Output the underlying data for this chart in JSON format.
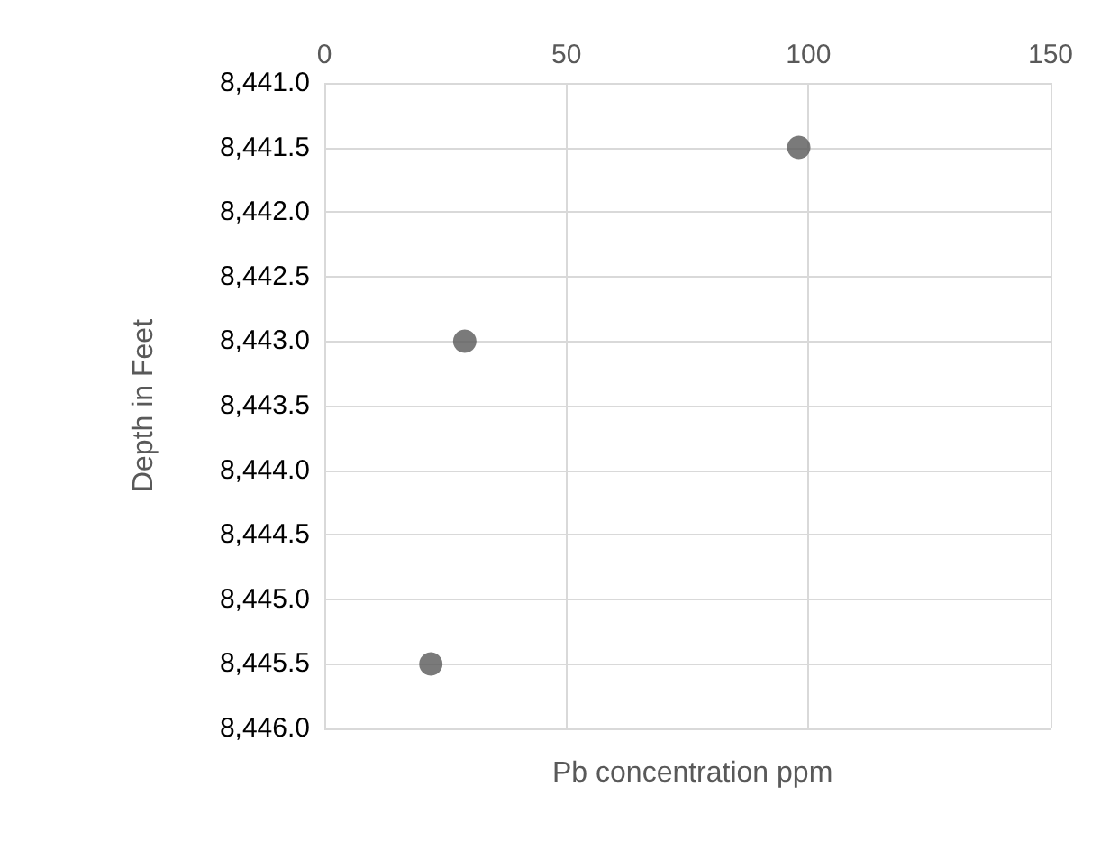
{
  "chart_data": {
    "type": "scatter",
    "xlabel": "Pb concentration ppm",
    "ylabel": "Depth in Feet",
    "x": [
      98,
      29,
      22
    ],
    "values": [
      8441.5,
      8443,
      8445.5
    ],
    "color": "#595959",
    "marker": "circle",
    "xlim": [
      0,
      150
    ],
    "xticks": [
      0,
      50,
      100,
      150
    ],
    "ylim": [
      8446,
      8441
    ],
    "yticks": [
      {
        "value": 8441,
        "label": "8,441.0"
      },
      {
        "value": 8441.5,
        "label": "8,441.5"
      },
      {
        "value": 8442,
        "label": "8,442.0"
      },
      {
        "value": 8442.5,
        "label": "8,442.5"
      },
      {
        "value": 8443,
        "label": "8,443.0"
      },
      {
        "value": 8443.5,
        "label": "8,443.5"
      },
      {
        "value": 8444,
        "label": "8,444.0"
      },
      {
        "value": 8444.5,
        "label": "8,444.5"
      },
      {
        "value": 8445,
        "label": "8,445.0"
      },
      {
        "value": 8445.5,
        "label": "8,445.5"
      },
      {
        "value": 8446,
        "label": "8,446.0"
      }
    ],
    "grid": true
  }
}
